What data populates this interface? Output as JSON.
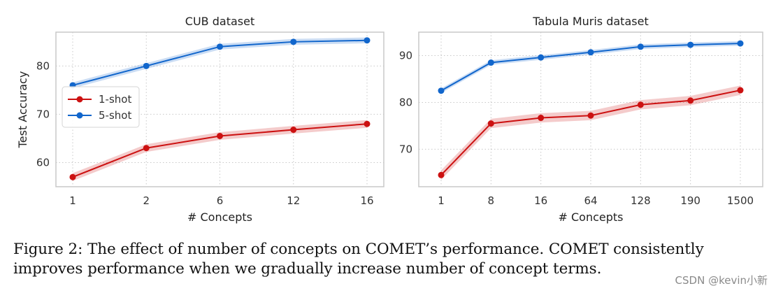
{
  "chart_data": [
    {
      "type": "line",
      "title": "CUB dataset",
      "xlabel": "# Concepts",
      "ylabel": "Test Accuracy",
      "categories": [
        "1",
        "2",
        "6",
        "12",
        "16"
      ],
      "ylim": [
        55,
        87
      ],
      "yticks": [
        60,
        70,
        80
      ],
      "grid": true,
      "legend_position": "center-left",
      "series": [
        {
          "name": "1-shot",
          "color": "#cc1111",
          "values": [
            57.0,
            63.0,
            65.5,
            66.8,
            68.0
          ],
          "ci": 0.8
        },
        {
          "name": "5-shot",
          "color": "#1166cc",
          "values": [
            76.0,
            80.0,
            84.0,
            85.0,
            85.3
          ],
          "ci": 0.6
        }
      ]
    },
    {
      "type": "line",
      "title": "Tabula Muris dataset",
      "xlabel": "# Concepts",
      "ylabel": "",
      "categories": [
        "1",
        "8",
        "16",
        "64",
        "128",
        "190",
        "1500"
      ],
      "ylim": [
        62,
        95
      ],
      "yticks": [
        70,
        80,
        90
      ],
      "grid": true,
      "series": [
        {
          "name": "1-shot",
          "color": "#cc1111",
          "values": [
            64.5,
            75.5,
            76.7,
            77.2,
            79.5,
            80.4,
            82.6
          ],
          "ci": 1.0
        },
        {
          "name": "5-shot",
          "color": "#1166cc",
          "values": [
            82.5,
            88.5,
            89.6,
            90.7,
            91.9,
            92.3,
            92.6
          ],
          "ci": 0.5
        }
      ]
    }
  ],
  "caption": {
    "line1": "Figure 2:  The effect of number of concepts on COMET’s performance.  COMET consistently",
    "line2": "improves performance when we gradually increase number of concept terms."
  },
  "watermark": "CSDN @kevin小新"
}
